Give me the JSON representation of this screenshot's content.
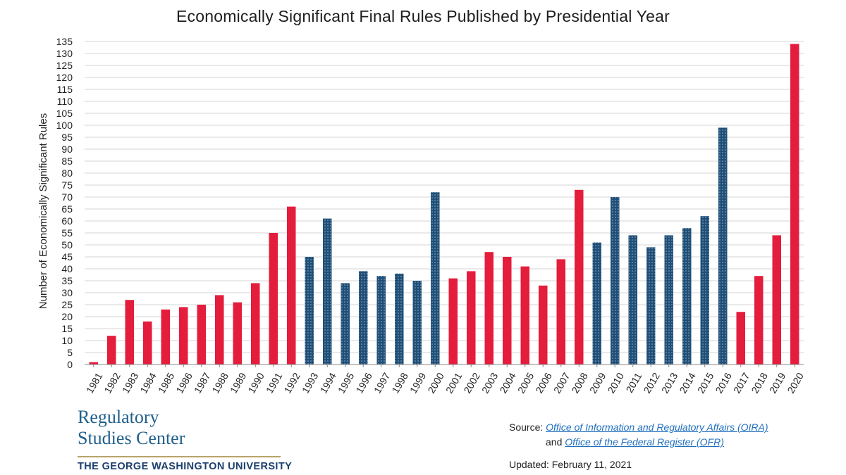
{
  "title": "Economically Significant Final Rules Published by Presidential Year",
  "colors": {
    "republican": "#e41d3c",
    "democrat": "#1f4f78",
    "grid": "#d4d4d4",
    "axis": "#888888",
    "logo": "#1f5f8b",
    "link": "#1f6fbf"
  },
  "chart_data": {
    "type": "bar",
    "title": "Economically Significant Final Rules Published by Presidential Year",
    "xlabel": "",
    "ylabel": "Number of Economically Significant Rules",
    "ylim": [
      0,
      135
    ],
    "ytick_step": 5,
    "grid": true,
    "categories": [
      "1981",
      "1982",
      "1983",
      "1984",
      "1985",
      "1986",
      "1987",
      "1988",
      "1989",
      "1990",
      "1991",
      "1992",
      "1993",
      "1994",
      "1995",
      "1996",
      "1997",
      "1998",
      "1999",
      "2000",
      "2001",
      "2002",
      "2003",
      "2004",
      "2005",
      "2006",
      "2007",
      "2008",
      "2009",
      "2010",
      "2011",
      "2012",
      "2013",
      "2014",
      "2015",
      "2016",
      "2017",
      "2018",
      "2019",
      "2020"
    ],
    "values": [
      1,
      12,
      27,
      18,
      23,
      24,
      25,
      29,
      26,
      34,
      55,
      66,
      45,
      61,
      34,
      39,
      37,
      38,
      35,
      72,
      36,
      39,
      47,
      45,
      41,
      33,
      44,
      73,
      51,
      70,
      54,
      49,
      54,
      57,
      62,
      99,
      22,
      37,
      54,
      134
    ],
    "party": [
      "R",
      "R",
      "R",
      "R",
      "R",
      "R",
      "R",
      "R",
      "R",
      "R",
      "R",
      "R",
      "D",
      "D",
      "D",
      "D",
      "D",
      "D",
      "D",
      "D",
      "R",
      "R",
      "R",
      "R",
      "R",
      "R",
      "R",
      "R",
      "D",
      "D",
      "D",
      "D",
      "D",
      "D",
      "D",
      "D",
      "R",
      "R",
      "R",
      "R"
    ],
    "series_style": {
      "R": "solid red",
      "D": "dotted navy"
    }
  },
  "logo": {
    "line1": "Regulatory",
    "line2": "Studies Center",
    "subtitle": "THE GEORGE WASHINGTON UNIVERSITY"
  },
  "source": {
    "prefix": "Source:",
    "link1": "Office of Information and Regulatory Affairs (OIRA)",
    "and": "and",
    "link2": "Office of the Federal Register (OFR)"
  },
  "updated": "Updated: February 11, 2021"
}
